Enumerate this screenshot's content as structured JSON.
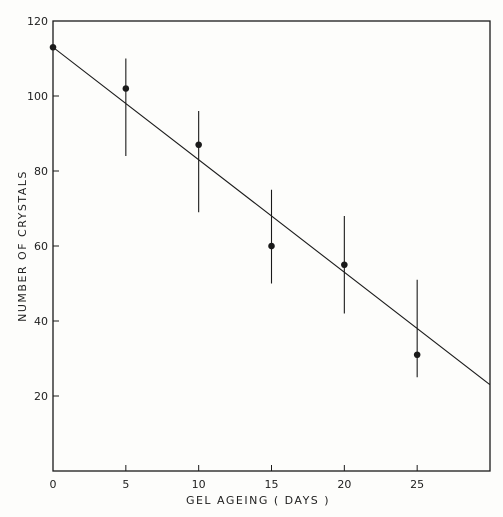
{
  "chart_data": {
    "type": "scatter",
    "xlabel": "GEL AGEING ( DAYS )",
    "ylabel": "NUMBER OF CRYSTALS",
    "xlim": [
      0,
      30
    ],
    "ylim": [
      0,
      120
    ],
    "x_ticks": [
      0,
      5,
      10,
      15,
      20,
      25
    ],
    "y_ticks": [
      20,
      40,
      60,
      80,
      100,
      120
    ],
    "grid": false,
    "points": [
      {
        "x": 0,
        "y": 113,
        "err_low": 113,
        "err_high": 113
      },
      {
        "x": 5,
        "y": 102,
        "err_low": 84,
        "err_high": 110
      },
      {
        "x": 10,
        "y": 87,
        "err_low": 69,
        "err_high": 96
      },
      {
        "x": 15,
        "y": 60,
        "err_low": 50,
        "err_high": 75
      },
      {
        "x": 20,
        "y": 55,
        "err_low": 42,
        "err_high": 68
      },
      {
        "x": 25,
        "y": 31,
        "err_low": 25,
        "err_high": 51
      }
    ],
    "fit_line": {
      "x": [
        0,
        30
      ],
      "y": [
        113,
        23
      ]
    },
    "colors": {
      "ink": "#1a1a1a",
      "background": "#fdfdfb"
    }
  }
}
